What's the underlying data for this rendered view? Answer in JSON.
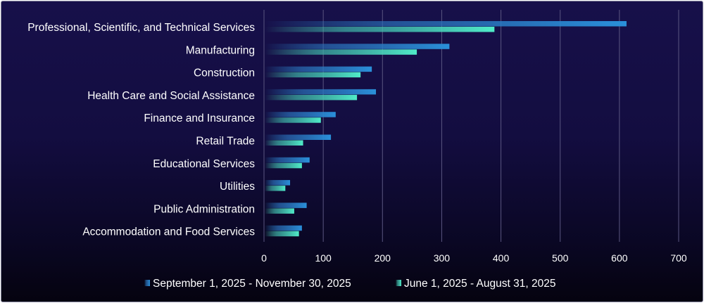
{
  "chart_data": {
    "type": "bar",
    "orientation": "horizontal",
    "categories": [
      "Professional, Scientific, and Technical Services",
      "Manufacturing",
      "Construction",
      "Health Care and Social Assistance",
      "Finance and Insurance",
      "Retail Trade",
      "Educational Services",
      "Utilities",
      "Public Administration",
      "Accommodation and Food Services"
    ],
    "series": [
      {
        "name": "September 1, 2025 - November 30, 2025",
        "color": "#2a8fd8",
        "values": [
          612,
          313,
          182,
          189,
          121,
          113,
          77,
          44,
          72,
          64
        ]
      },
      {
        "name": "June 1, 2025 - August 31, 2025",
        "color": "#4de8c4",
        "values": [
          389,
          258,
          163,
          157,
          96,
          66,
          64,
          36,
          51,
          59
        ]
      }
    ],
    "xlim": [
      0,
      700
    ],
    "xticks": [
      "0",
      "100",
      "200",
      "300",
      "400",
      "500",
      "600",
      "700"
    ],
    "grid": true,
    "legend": "bottom",
    "title": "",
    "xlabel": "",
    "ylabel": ""
  }
}
